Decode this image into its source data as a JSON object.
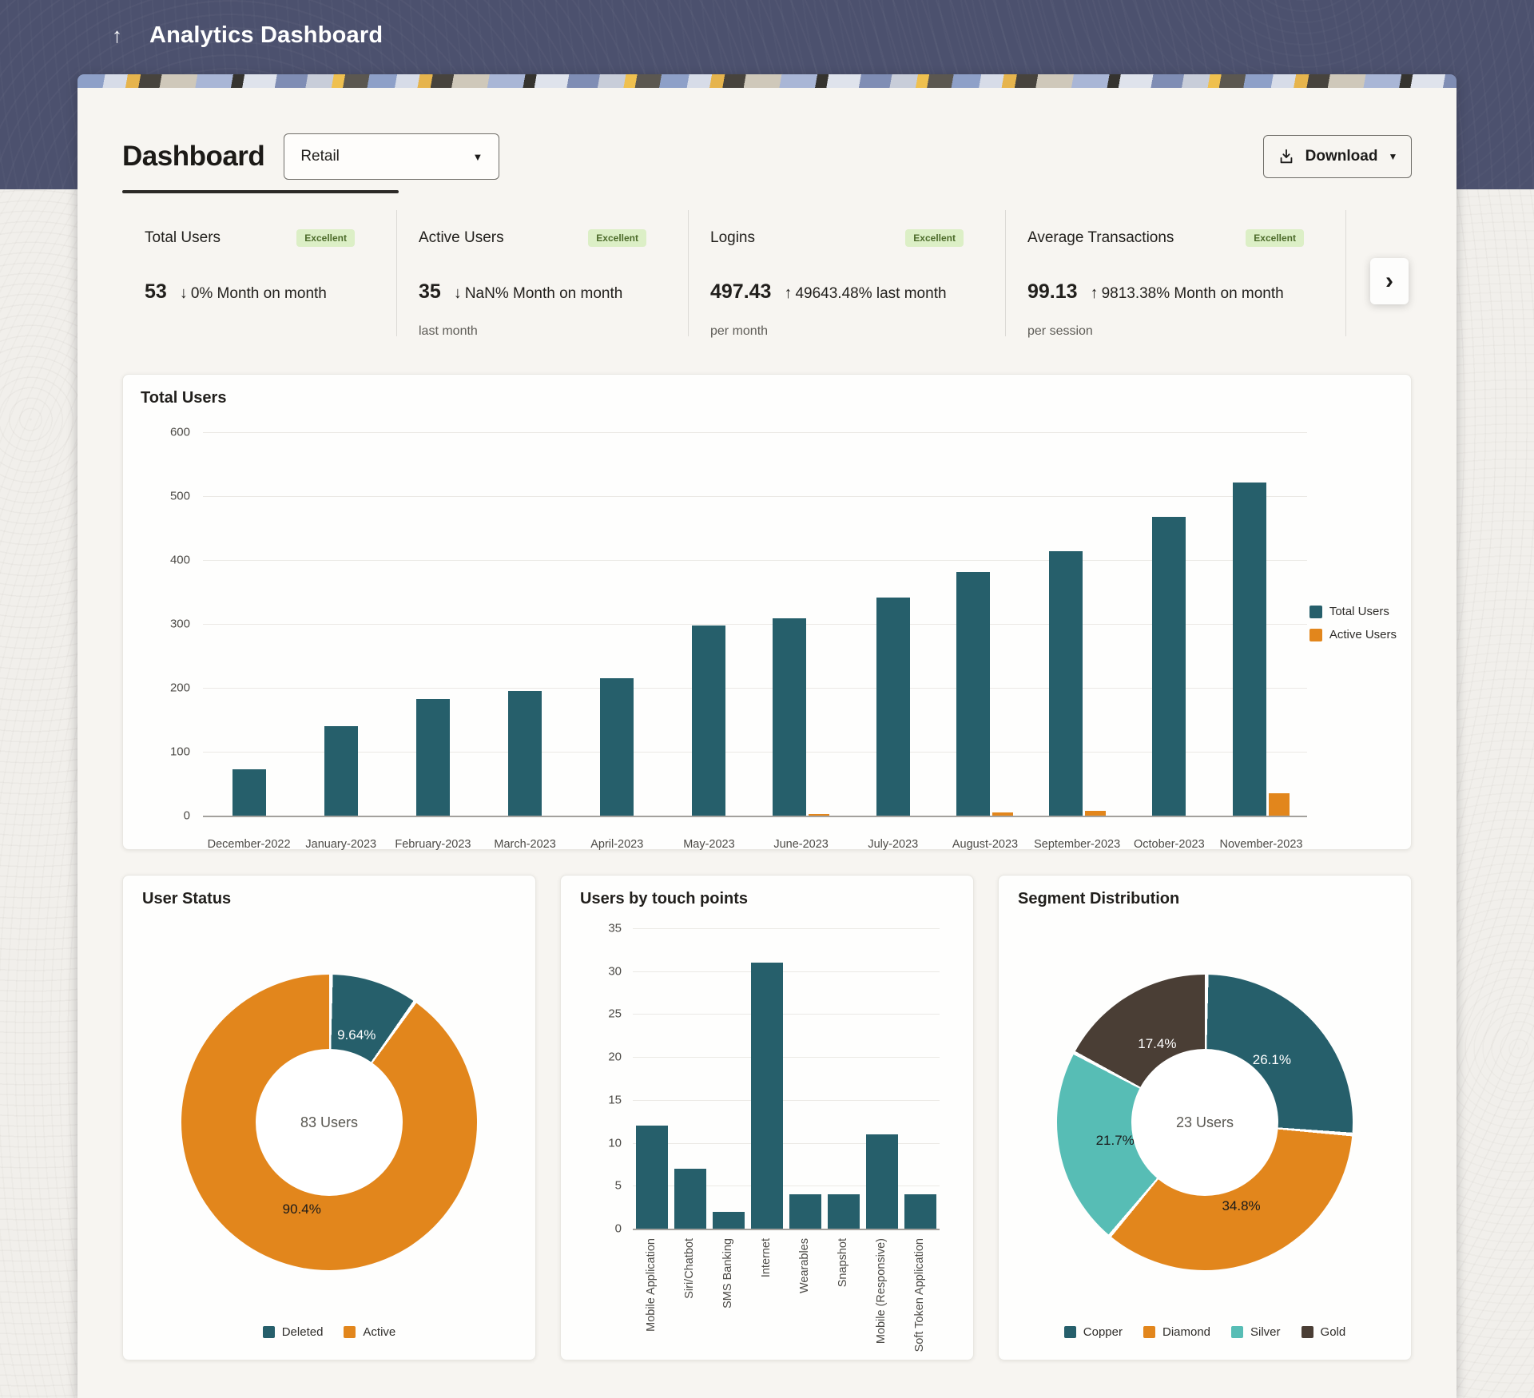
{
  "header": {
    "title": "Analytics Dashboard",
    "back_icon": "↑"
  },
  "icons": {
    "chevron_right": "›",
    "caret_down": "▼"
  },
  "toolbar": {
    "page_title": "Dashboard",
    "filter_value": "Retail",
    "download_label": "Download"
  },
  "kpis": [
    {
      "label": "Total Users",
      "badge": "Excellent",
      "value": "53",
      "direction_icon": "↓",
      "change": "0% Month on month",
      "sublabel": ""
    },
    {
      "label": "Active Users",
      "badge": "Excellent",
      "value": "35",
      "direction_icon": "↓",
      "change": "NaN% Month on month",
      "sublabel": "last month"
    },
    {
      "label": "Logins",
      "badge": "Excellent",
      "value": "497.43",
      "direction_icon": "↑",
      "change": "49643.48% last month",
      "sublabel": "per month"
    },
    {
      "label": "Average Transactions",
      "badge": "Excellent",
      "value": "99.13",
      "direction_icon": "↑",
      "change": "9813.38% Month on month",
      "sublabel": "per session"
    }
  ],
  "colors": {
    "teal": "#265f6b",
    "orange": "#e2861c",
    "silver": "#57bdb5",
    "gold": "#4a3e35",
    "header_blue": "#4c516e",
    "badge_bg": "#dcefc6",
    "badge_text": "#4c6b2a"
  },
  "chart_data": [
    {
      "id": "total_users_trend",
      "type": "bar",
      "title": "Total Users",
      "categories": [
        "December-2022",
        "January-2023",
        "February-2023",
        "March-2023",
        "April-2023",
        "May-2023",
        "June-2023",
        "July-2023",
        "August-2023",
        "September-2023",
        "October-2023",
        "November-2023"
      ],
      "series": [
        {
          "name": "Total Users",
          "color": "#265f6b",
          "values": [
            72,
            140,
            183,
            195,
            215,
            297,
            309,
            341,
            381,
            414,
            467,
            521
          ]
        },
        {
          "name": "Active Users",
          "color": "#e2861c",
          "values": [
            0,
            0,
            0,
            0,
            0,
            0,
            2,
            0,
            5,
            8,
            0,
            35
          ]
        }
      ],
      "ylim": [
        0,
        600
      ],
      "ytick_step": 100,
      "grid": true,
      "legend_position": "right"
    },
    {
      "id": "user_status",
      "type": "pie",
      "title": "User Status",
      "center_label": "83 Users",
      "slices": [
        {
          "label": "Deleted",
          "value": 9.64,
          "display": "9.64%",
          "color": "#265f6b",
          "text_color": "#ffffff"
        },
        {
          "label": "Active",
          "value": 90.36,
          "display": "90.4%",
          "color": "#e2861c",
          "text_color": "#1a1a1a"
        }
      ],
      "legend_position": "bottom"
    },
    {
      "id": "users_by_touch_points",
      "type": "bar",
      "title": "Users by touch points",
      "categories": [
        "Mobile Application",
        "Siri/Chatbot",
        "SMS Banking",
        "Internet",
        "Wearables",
        "Snapshot",
        "Mobile (Responsive)",
        "Soft Token Application"
      ],
      "values": [
        12,
        7,
        2,
        31,
        4,
        4,
        11,
        4
      ],
      "color": "#265f6b",
      "ylim": [
        0,
        35
      ],
      "ytick_step": 5,
      "grid": true
    },
    {
      "id": "segment_distribution",
      "type": "pie",
      "title": "Segment Distribution",
      "center_label": "23 Users",
      "slices": [
        {
          "label": "Copper",
          "value": 26.1,
          "display": "26.1%",
          "color": "#265f6b",
          "text_color": "#ffffff"
        },
        {
          "label": "Diamond",
          "value": 34.8,
          "display": "34.8%",
          "color": "#e2861c",
          "text_color": "#1a1a1a"
        },
        {
          "label": "Silver",
          "value": 21.7,
          "display": "21.7%",
          "color": "#57bdb5",
          "text_color": "#1a1a1a"
        },
        {
          "label": "Gold",
          "value": 17.4,
          "display": "17.4%",
          "color": "#4a3e35",
          "text_color": "#ffffff"
        }
      ],
      "legend_position": "bottom"
    }
  ]
}
